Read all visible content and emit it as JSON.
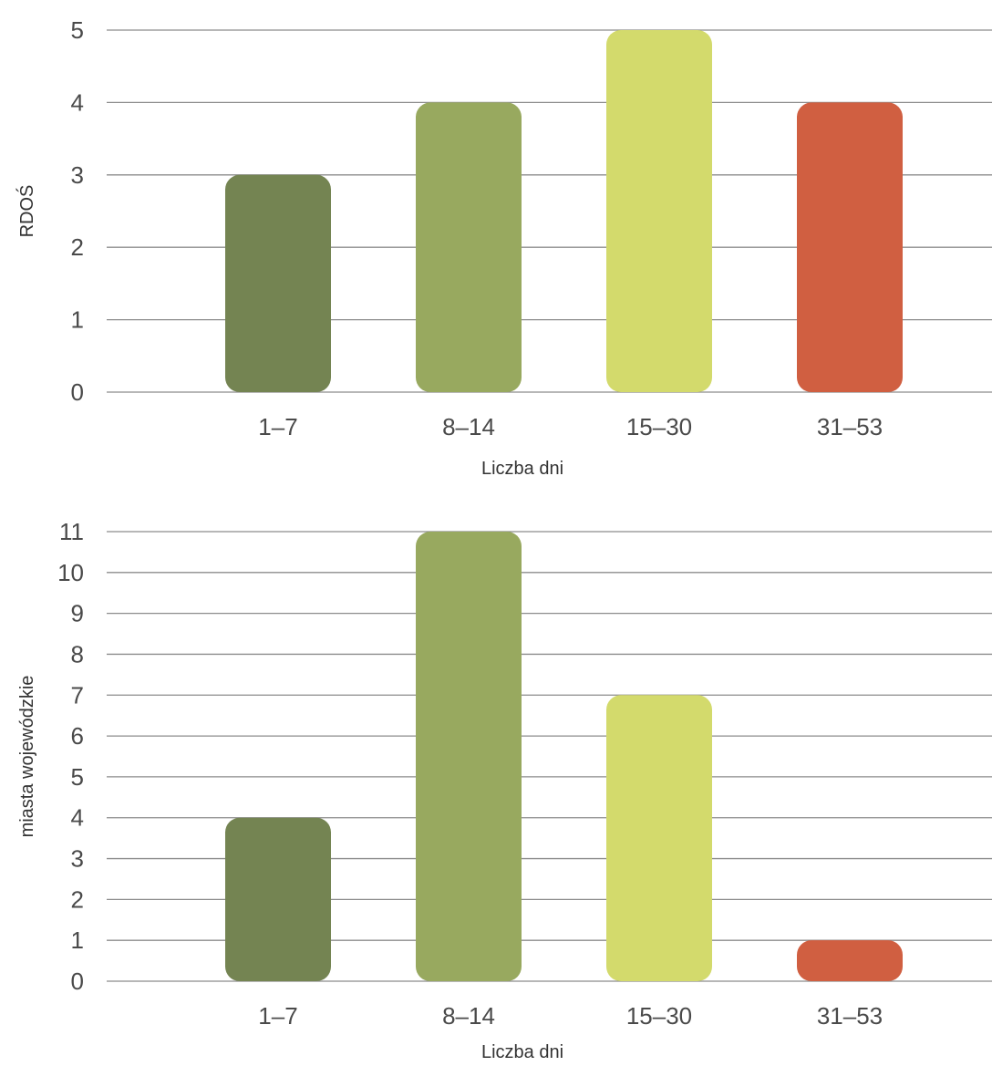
{
  "chart_data": [
    {
      "type": "bar",
      "categories": [
        "1–7",
        "8–14",
        "15–30",
        "31–53"
      ],
      "values": [
        3,
        4,
        5,
        4
      ],
      "colors": [
        "#748452",
        "#98a95f",
        "#d3da6c",
        "#d05f41"
      ],
      "xlabel": "Liczba dni",
      "ylabel": "RDOŚ",
      "ylim": [
        0,
        5
      ],
      "yticks": [
        0,
        1,
        2,
        3,
        4,
        5
      ],
      "grid": true
    },
    {
      "type": "bar",
      "categories": [
        "1–7",
        "8–14",
        "15–30",
        "31–53"
      ],
      "values": [
        4,
        11,
        7,
        1
      ],
      "colors": [
        "#748452",
        "#98a95f",
        "#d3da6c",
        "#d05f41"
      ],
      "xlabel": "Liczba dni",
      "ylabel": "miasta wojewódzkie",
      "ylim": [
        0,
        11
      ],
      "yticks": [
        0,
        1,
        2,
        3,
        4,
        5,
        6,
        7,
        8,
        9,
        10,
        11
      ],
      "grid": true
    }
  ]
}
